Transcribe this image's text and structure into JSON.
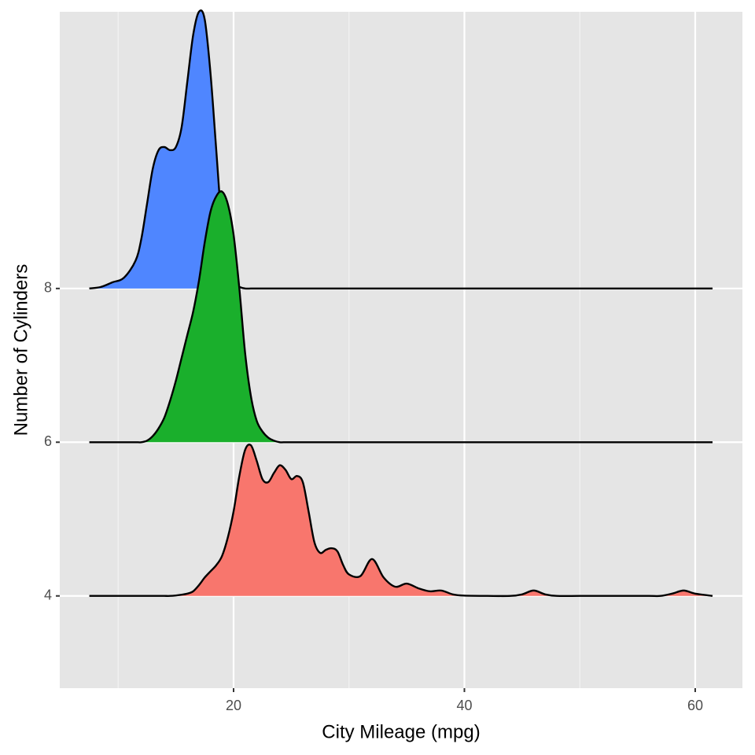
{
  "chart_data": {
    "type": "ridgeline",
    "x_label": "City Mileage (mpg)",
    "y_label": "Number of Cylinders",
    "categories": [
      "4",
      "6",
      "8"
    ],
    "x": [
      7.5,
      8.5,
      9.5,
      10.5,
      11.5,
      12,
      12.5,
      13,
      13.5,
      14,
      14.5,
      15,
      15.5,
      16,
      16.5,
      17,
      17.5,
      18,
      18.5,
      19,
      19.5,
      20,
      20.5,
      21,
      21.5,
      22,
      22.5,
      23,
      23.5,
      24,
      24.5,
      25,
      25.5,
      26,
      26.5,
      27,
      27.5,
      28,
      28.5,
      29,
      29.5,
      30,
      31,
      32,
      33,
      34,
      35,
      36,
      37,
      38,
      39,
      40,
      42,
      44,
      45,
      46,
      47,
      48,
      50,
      52,
      54,
      56,
      57,
      58,
      59,
      60,
      61.5
    ],
    "series": [
      {
        "color": "#f8766d",
        "values": [
          0,
          0,
          0,
          0,
          0,
          0,
          0,
          0,
          0,
          0,
          0,
          0.003,
          0.008,
          0.015,
          0.03,
          0.07,
          0.12,
          0.16,
          0.2,
          0.26,
          0.38,
          0.55,
          0.78,
          0.95,
          0.98,
          0.88,
          0.76,
          0.74,
          0.8,
          0.85,
          0.82,
          0.76,
          0.78,
          0.74,
          0.55,
          0.35,
          0.28,
          0.3,
          0.31,
          0.29,
          0.2,
          0.14,
          0.13,
          0.24,
          0.12,
          0.06,
          0.08,
          0.05,
          0.03,
          0.035,
          0.01,
          0.002,
          0,
          0,
          0.01,
          0.035,
          0.01,
          0,
          0,
          0,
          0,
          0,
          0,
          0.015,
          0.035,
          0.015,
          0
        ]
      },
      {
        "color": "#1aaf2c",
        "values": [
          0,
          0,
          0,
          0,
          0,
          0,
          0.01,
          0.04,
          0.09,
          0.16,
          0.27,
          0.4,
          0.55,
          0.7,
          0.85,
          1.05,
          1.3,
          1.5,
          1.6,
          1.63,
          1.55,
          1.35,
          1.0,
          0.58,
          0.3,
          0.14,
          0.07,
          0.03,
          0.01,
          0,
          0,
          0,
          0,
          0,
          0,
          0,
          0,
          0,
          0,
          0,
          0,
          0,
          0,
          0,
          0,
          0,
          0,
          0,
          0,
          0,
          0,
          0,
          0,
          0,
          0,
          0,
          0,
          0,
          0,
          0,
          0,
          0,
          0,
          0,
          0,
          0,
          0
        ]
      },
      {
        "color": "#4f86ff",
        "values": [
          0,
          0.01,
          0.04,
          0.07,
          0.18,
          0.32,
          0.55,
          0.78,
          0.9,
          0.92,
          0.9,
          0.92,
          1.05,
          1.35,
          1.65,
          1.8,
          1.75,
          1.4,
          0.9,
          0.4,
          0.12,
          0.03,
          0.01,
          0,
          0,
          0,
          0,
          0,
          0,
          0,
          0,
          0,
          0,
          0,
          0,
          0,
          0,
          0,
          0,
          0,
          0,
          0,
          0,
          0,
          0,
          0,
          0,
          0,
          0,
          0,
          0,
          0,
          0,
          0,
          0,
          0,
          0,
          0,
          0,
          0,
          0,
          0,
          0,
          0,
          0,
          0,
          0
        ]
      }
    ],
    "xlim": [
      4.94,
      64.09
    ],
    "xticks": [
      20,
      40,
      60
    ],
    "xminorticks": [
      10,
      30,
      50
    ],
    "ylim": [
      -0.6,
      3.8
    ],
    "grid": true
  }
}
